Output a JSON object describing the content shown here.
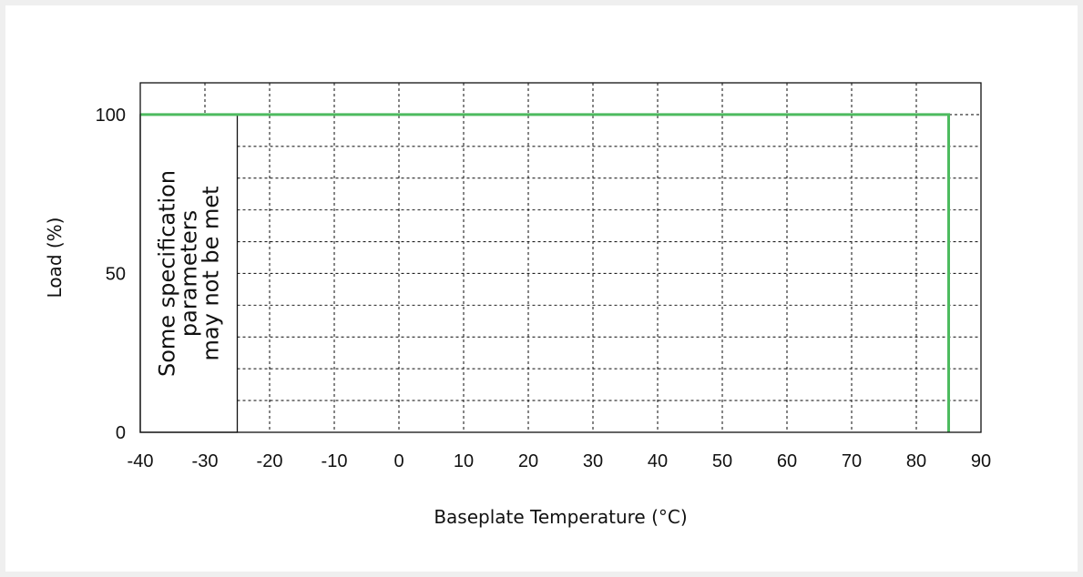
{
  "chart_data": {
    "type": "line",
    "xlabel": "Baseplate Temperature (°C)",
    "ylabel": "Load (%)",
    "xlim": [
      -40,
      90
    ],
    "ylim": [
      0,
      110
    ],
    "x_ticks": [
      -40,
      -30,
      -20,
      -10,
      0,
      10,
      20,
      30,
      40,
      50,
      60,
      70,
      80,
      90
    ],
    "y_ticks": [
      0,
      50,
      100
    ],
    "x_tick_labels": [
      "-40",
      "-30",
      "-20",
      "-10",
      "0",
      "10",
      "20",
      "30",
      "40",
      "50",
      "60",
      "70",
      "80",
      "90"
    ],
    "y_tick_labels": [
      "0",
      "50",
      "100"
    ],
    "grid": "dotted",
    "grid_y": [
      10,
      20,
      30,
      40,
      50,
      60,
      70,
      80,
      90,
      100
    ],
    "series": [
      {
        "color": "#4dbb5f",
        "x": [
          -40,
          85,
          85
        ],
        "y": [
          100,
          100,
          0
        ]
      }
    ],
    "regions": [
      {
        "x_range": [
          -40,
          -25
        ],
        "y_range": [
          0,
          100
        ],
        "text_lines": [
          "Some specification",
          "parameters",
          "may not be met"
        ]
      }
    ]
  }
}
